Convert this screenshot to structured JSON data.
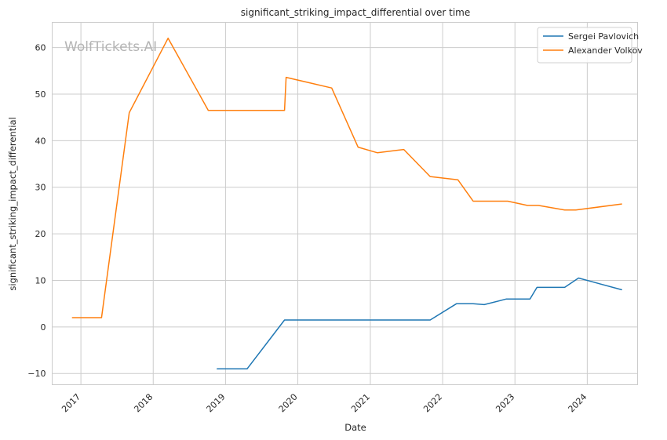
{
  "chart_data": {
    "type": "line",
    "title": "significant_striking_impact_differential over time",
    "xlabel": "Date",
    "ylabel": "significant_striking_impact_differential",
    "watermark": "WolfTickets.AI",
    "x_ticks": [
      "2017",
      "2018",
      "2019",
      "2020",
      "2021",
      "2022",
      "2023",
      "2024"
    ],
    "y_ticks": [
      -10,
      0,
      10,
      20,
      30,
      40,
      50,
      60
    ],
    "xlim": [
      "2016-08-09",
      "2024-09-11"
    ],
    "ylim": [
      -12.4,
      65.4
    ],
    "grid": true,
    "legend_position": "top-right",
    "series": [
      {
        "name": "Sergei Pavlovich",
        "color": "#1f77b4",
        "points": [
          [
            "2018-11-20",
            -9.0
          ],
          [
            "2019-04-20",
            -9.0
          ],
          [
            "2019-10-26",
            1.5
          ],
          [
            "2020-07-01",
            1.5
          ],
          [
            "2021-03-01",
            1.5
          ],
          [
            "2021-10-30",
            1.5
          ],
          [
            "2022-03-12",
            5.0
          ],
          [
            "2022-06-04",
            5.0
          ],
          [
            "2022-07-30",
            4.8
          ],
          [
            "2022-11-19",
            6.0
          ],
          [
            "2023-03-18",
            6.0
          ],
          [
            "2023-04-22",
            8.5
          ],
          [
            "2023-09-09",
            8.5
          ],
          [
            "2023-11-18",
            10.5
          ],
          [
            "2024-06-22",
            8.0
          ]
        ]
      },
      {
        "name": "Alexander Volkov",
        "color": "#ff7f0e",
        "points": [
          [
            "2016-11-19",
            2.0
          ],
          [
            "2017-04-15",
            2.0
          ],
          [
            "2017-09-02",
            46.0
          ],
          [
            "2018-03-17",
            62.0
          ],
          [
            "2018-10-06",
            46.5
          ],
          [
            "2019-10-26",
            46.5
          ],
          [
            "2019-11-03",
            53.6
          ],
          [
            "2020-06-20",
            51.3
          ],
          [
            "2020-10-31",
            38.6
          ],
          [
            "2021-02-06",
            37.4
          ],
          [
            "2021-06-19",
            38.1
          ],
          [
            "2021-10-30",
            32.3
          ],
          [
            "2022-03-19",
            31.6
          ],
          [
            "2022-06-04",
            27.0
          ],
          [
            "2022-11-26",
            27.0
          ],
          [
            "2023-03-04",
            26.1
          ],
          [
            "2023-04-29",
            26.1
          ],
          [
            "2023-09-09",
            25.1
          ],
          [
            "2023-11-04",
            25.1
          ],
          [
            "2024-06-22",
            26.4
          ]
        ]
      }
    ]
  }
}
